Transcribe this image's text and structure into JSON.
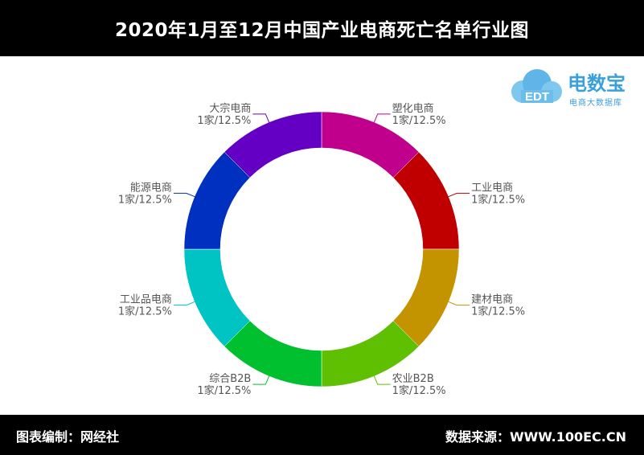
{
  "header": {
    "title": "2020年1月至12月中国产业电商死亡名单行业图"
  },
  "footer": {
    "left": "图表编制：网经社",
    "right": "数据来源：WWW.100EC.CN"
  },
  "logo": {
    "brand": "电数宝",
    "sub": "电商大数据库",
    "mark": "EDT"
  },
  "chart_data": {
    "type": "pie",
    "variant": "donut",
    "categories": [
      "塑化电商",
      "工业电商",
      "建材电商",
      "农业B2B",
      "综合B2B",
      "工业品电商",
      "能源电商",
      "大宗电商"
    ],
    "values": [
      1,
      1,
      1,
      1,
      1,
      1,
      1,
      1
    ],
    "labels": [
      "1家/12.5%",
      "1家/12.5%",
      "1家/12.5%",
      "1家/12.5%",
      "1家/12.5%",
      "1家/12.5%",
      "1家/12.5%",
      "1家/12.5%"
    ],
    "colors": [
      "#c0008c",
      "#c00000",
      "#c49400",
      "#5ec000",
      "#00c030",
      "#00c4c4",
      "#0030c0",
      "#6400c4"
    ]
  }
}
